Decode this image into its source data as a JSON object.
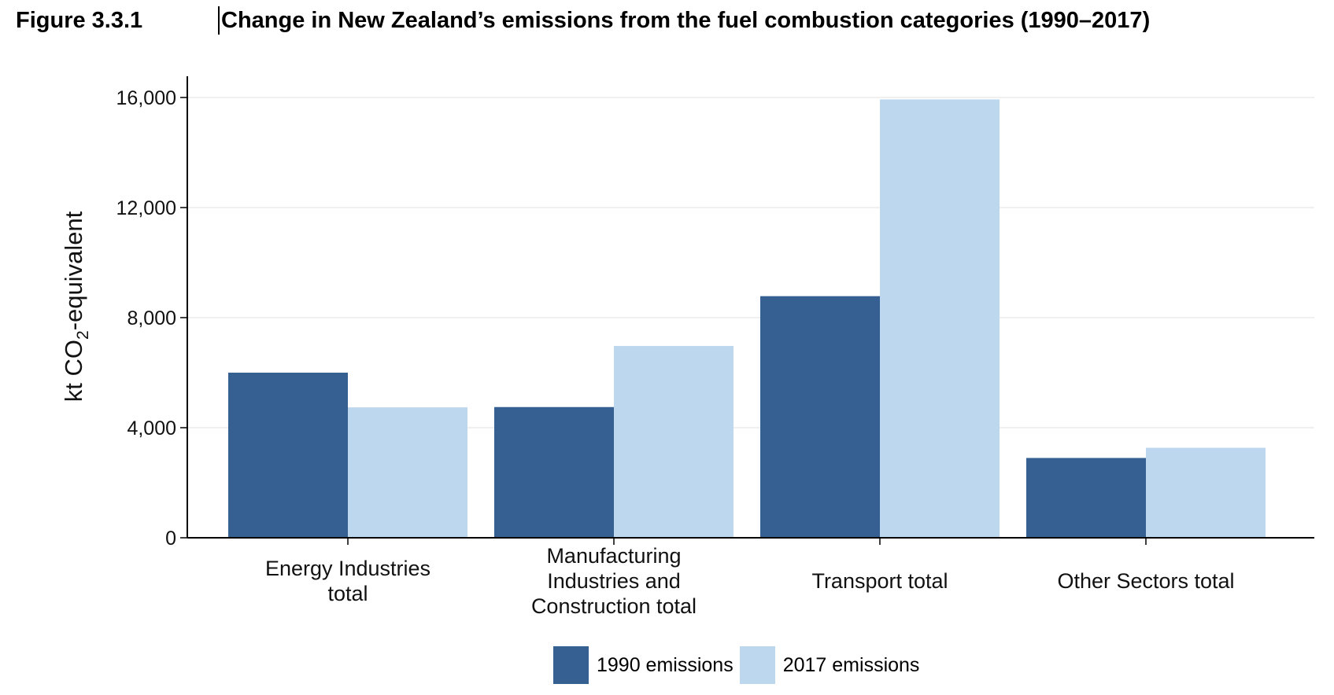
{
  "figure": {
    "number": "Figure 3.3.1",
    "caption": "Change in New Zealand’s emissions from the fuel combustion categories (1990–2017)"
  },
  "chart_data": {
    "type": "bar",
    "categories": [
      [
        "Energy Industries",
        "total"
      ],
      [
        "Manufacturing",
        "Industries and",
        "Construction total"
      ],
      [
        "Transport total"
      ],
      [
        "Other Sectors total"
      ]
    ],
    "series": [
      {
        "name": "1990 emissions",
        "color": "#376092",
        "values": [
          6000,
          4750,
          8780,
          2900
        ]
      },
      {
        "name": "2017 emissions",
        "color": "#bdd7ee",
        "values": [
          4740,
          6970,
          15930,
          3270
        ]
      }
    ],
    "ylabel": "kt CO",
    "ylabel_subscript": "2",
    "ylabel_suffix": "-equivalent",
    "ylim": [
      0,
      16000
    ],
    "yticks": [
      0,
      4000,
      8000,
      12000,
      16000
    ],
    "ytick_labels": [
      "0",
      "4,000",
      "8,000",
      "12,000",
      "16,000"
    ],
    "grid": true,
    "legend_position": "bottom"
  },
  "legend_labels": [
    "1990 emissions",
    "2017 emissions"
  ]
}
